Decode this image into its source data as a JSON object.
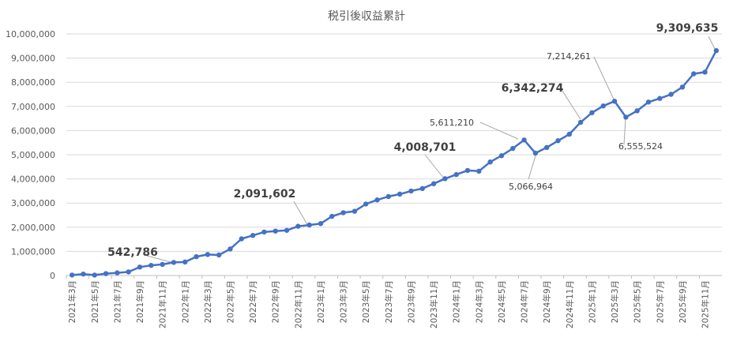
{
  "chart_data": {
    "type": "line",
    "title": "税引後収益累計",
    "xlabel": "",
    "ylabel": "",
    "ylim": [
      0,
      10000000
    ],
    "y_ticks": [
      0,
      1000000,
      2000000,
      3000000,
      4000000,
      5000000,
      6000000,
      7000000,
      8000000,
      9000000,
      10000000
    ],
    "y_tick_labels": [
      "0",
      "1,000,000",
      "2,000,000",
      "3,000,000",
      "4,000,000",
      "5,000,000",
      "6,000,000",
      "7,000,000",
      "8,000,000",
      "9,000,000",
      "10,000,000"
    ],
    "grid": "horizontal",
    "legend": "none",
    "line_color": "#4472C4",
    "categories": [
      "2021年3月",
      "2021年4月",
      "2021年5月",
      "2021年6月",
      "2021年7月",
      "2021年8月",
      "2021年9月",
      "2021年10月",
      "2021年11月",
      "2021年12月",
      "2022年1月",
      "2022年2月",
      "2022年3月",
      "2022年4月",
      "2022年5月",
      "2022年6月",
      "2022年7月",
      "2022年8月",
      "2022年9月",
      "2022年10月",
      "2022年11月",
      "2022年12月",
      "2023年1月",
      "2023年2月",
      "2023年3月",
      "2023年4月",
      "2023年5月",
      "2023年6月",
      "2023年7月",
      "2023年8月",
      "2023年9月",
      "2023年10月",
      "2023年11月",
      "2023年12月",
      "2024年1月",
      "2024年2月",
      "2024年3月",
      "2024年4月",
      "2024年5月",
      "2024年6月",
      "2024年7月",
      "2024年8月",
      "2024年9月",
      "2024年10月",
      "2024年11月",
      "2024年12月",
      "2025年1月",
      "2025年2月",
      "2025年3月",
      "2025年4月",
      "2025年5月",
      "2025年6月",
      "2025年7月",
      "2025年8月",
      "2025年9月",
      "2025年10月",
      "2025年11月",
      "2025年12月"
    ],
    "x_tick_labels": [
      "2021年3月",
      "2021年5月",
      "2021年7月",
      "2021年9月",
      "2021年11月",
      "2022年1月",
      "2022年3月",
      "2022年5月",
      "2022年7月",
      "2022年9月",
      "2022年11月",
      "2023年1月",
      "2023年3月",
      "2023年5月",
      "2023年7月",
      "2023年9月",
      "2023年11月",
      "2024年1月",
      "2024年3月",
      "2024年5月",
      "2024年7月",
      "2024年9月",
      "2024年11月",
      "2025年1月",
      "2025年3月",
      "2025年5月",
      "2025年7月",
      "2025年9月",
      "2025年11月"
    ],
    "values": [
      20000,
      60000,
      20000,
      80000,
      110000,
      150000,
      350000,
      420000,
      460000,
      542786,
      560000,
      780000,
      870000,
      850000,
      1100000,
      1520000,
      1660000,
      1800000,
      1840000,
      1870000,
      2040000,
      2091602,
      2150000,
      2450000,
      2600000,
      2660000,
      2960000,
      3130000,
      3270000,
      3370000,
      3500000,
      3600000,
      3800000,
      4008701,
      4180000,
      4350000,
      4320000,
      4700000,
      4960000,
      5260000,
      5611210,
      5066964,
      5300000,
      5580000,
      5850000,
      6342274,
      6740000,
      7020000,
      7214261,
      6555524,
      6820000,
      7180000,
      7330000,
      7500000,
      7800000,
      8350000,
      8420000,
      9309635
    ],
    "annotations": [
      {
        "index": 9,
        "label": "542,786",
        "style": "bold"
      },
      {
        "index": 21,
        "label": "2,091,602",
        "style": "bold"
      },
      {
        "index": 33,
        "label": "4,008,701",
        "style": "bold"
      },
      {
        "index": 40,
        "label": "5,611,210",
        "style": "normal"
      },
      {
        "index": 41,
        "label": "5,066,964",
        "style": "normal"
      },
      {
        "index": 45,
        "label": "6,342,274",
        "style": "bold"
      },
      {
        "index": 48,
        "label": "7,214,261",
        "style": "normal"
      },
      {
        "index": 49,
        "label": "6,555,524",
        "style": "normal"
      },
      {
        "index": 57,
        "label": "9,309,635",
        "style": "bold"
      }
    ]
  }
}
